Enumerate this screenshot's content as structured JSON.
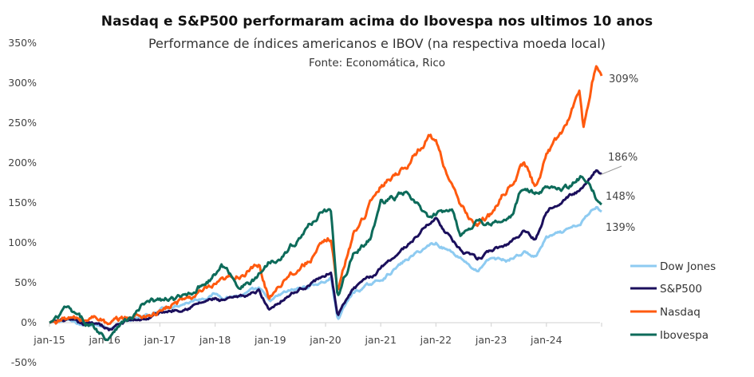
{
  "chart_data": {
    "type": "line",
    "title": "Nasdaq e S&P500 performaram acima do Ibovespa nos ultimos 10 anos",
    "subtitle": "Performance de índices americanos e IBOV (na respectiva moeda local)",
    "source": "Fonte: Economática, Rico",
    "xlabel": "",
    "ylabel": "",
    "ylim": [
      -50,
      350
    ],
    "y_ticks": [
      350,
      300,
      250,
      200,
      150,
      100,
      50,
      0,
      -50
    ],
    "y_tick_labels": [
      "350%",
      "300%",
      "250%",
      "200%",
      "150%",
      "100%",
      "50%",
      "0%",
      "-50%"
    ],
    "x_tick_labels": [
      "jan-15",
      "jan-16",
      "jan-17",
      "jan-18",
      "jan-19",
      "jan-20",
      "jan-21",
      "jan-22",
      "jan-23",
      "jan-24"
    ],
    "x_range_years": [
      2015.0,
      2025.0
    ],
    "grid": false,
    "legend_position": "right",
    "series": [
      {
        "name": "Dow Jones",
        "color": "#8ecbf1",
        "end_label": "139%",
        "x": [
          2015.0,
          2015.3,
          2015.6,
          2015.9,
          2016.08,
          2016.4,
          2016.8,
          2017.0,
          2017.5,
          2018.0,
          2018.1,
          2018.5,
          2018.8,
          2018.97,
          2019.3,
          2019.6,
          2020.0,
          2020.1,
          2020.22,
          2020.5,
          2020.9,
          2021.0,
          2021.5,
          2021.9,
          2022.0,
          2022.45,
          2022.75,
          2023.0,
          2023.3,
          2023.6,
          2023.8,
          2024.0,
          2024.3,
          2024.6,
          2024.9,
          2025.0
        ],
        "values": [
          0,
          3,
          -3,
          0,
          -8,
          2,
          8,
          18,
          26,
          36,
          33,
          34,
          42,
          26,
          38,
          44,
          52,
          56,
          5,
          38,
          50,
          54,
          80,
          98,
          100,
          82,
          64,
          80,
          78,
          88,
          82,
          106,
          112,
          122,
          146,
          139
        ]
      },
      {
        "name": "S&P500",
        "color": "#1b0f5c",
        "end_label": "186%",
        "x": [
          2015.0,
          2015.3,
          2015.6,
          2015.9,
          2016.08,
          2016.4,
          2016.8,
          2017.0,
          2017.5,
          2018.0,
          2018.1,
          2018.5,
          2018.8,
          2018.97,
          2019.3,
          2019.6,
          2020.0,
          2020.1,
          2020.22,
          2020.5,
          2020.9,
          2021.0,
          2021.5,
          2021.9,
          2022.0,
          2022.45,
          2022.75,
          2023.0,
          2023.3,
          2023.6,
          2023.8,
          2024.0,
          2024.3,
          2024.6,
          2024.9,
          2025.0
        ],
        "values": [
          0,
          3,
          -3,
          0,
          -9,
          2,
          6,
          12,
          20,
          30,
          26,
          32,
          40,
          17,
          34,
          44,
          60,
          64,
          9,
          42,
          60,
          70,
          98,
          126,
          131,
          90,
          78,
          90,
          98,
          116,
          104,
          140,
          156,
          165,
          192,
          186
        ]
      },
      {
        "name": "Nasdaq",
        "color": "#ff5a0f",
        "end_label": "309%",
        "x": [
          2015.0,
          2015.3,
          2015.6,
          2015.9,
          2016.08,
          2016.4,
          2016.8,
          2017.0,
          2017.5,
          2018.0,
          2018.1,
          2018.5,
          2018.8,
          2018.97,
          2019.3,
          2019.6,
          2020.0,
          2020.1,
          2020.22,
          2020.5,
          2020.9,
          2021.0,
          2021.5,
          2021.9,
          2022.0,
          2022.45,
          2022.75,
          2023.0,
          2023.3,
          2023.6,
          2023.8,
          2024.0,
          2024.3,
          2024.6,
          2024.67,
          2024.9,
          2025.0
        ],
        "values": [
          0,
          6,
          2,
          8,
          -4,
          6,
          10,
          14,
          30,
          44,
          48,
          62,
          70,
          32,
          60,
          72,
          100,
          106,
          40,
          110,
          160,
          172,
          200,
          236,
          226,
          142,
          122,
          134,
          168,
          200,
          168,
          210,
          240,
          290,
          244,
          324,
          309
        ]
      },
      {
        "name": "Ibovespa",
        "color": "#0d6b5a",
        "end_label": "148%",
        "x": [
          2015.0,
          2015.15,
          2015.3,
          2015.55,
          2015.8,
          2016.05,
          2016.25,
          2016.5,
          2016.7,
          2016.9,
          2017.0,
          2017.4,
          2017.6,
          2018.0,
          2018.12,
          2018.45,
          2018.7,
          2018.97,
          2019.3,
          2019.6,
          2019.97,
          2020.1,
          2020.22,
          2020.5,
          2020.8,
          2021.0,
          2021.45,
          2021.9,
          2022.3,
          2022.45,
          2022.75,
          2023.0,
          2023.4,
          2023.55,
          2023.85,
          2024.1,
          2024.4,
          2024.65,
          2024.9,
          2025.0
        ],
        "values": [
          0,
          4,
          18,
          4,
          -6,
          -20,
          0,
          6,
          22,
          26,
          28,
          30,
          40,
          60,
          72,
          46,
          52,
          76,
          90,
          112,
          144,
          140,
          30,
          86,
          104,
          150,
          162,
          128,
          146,
          108,
          130,
          122,
          134,
          168,
          160,
          174,
          170,
          182,
          156,
          148
        ]
      }
    ]
  }
}
